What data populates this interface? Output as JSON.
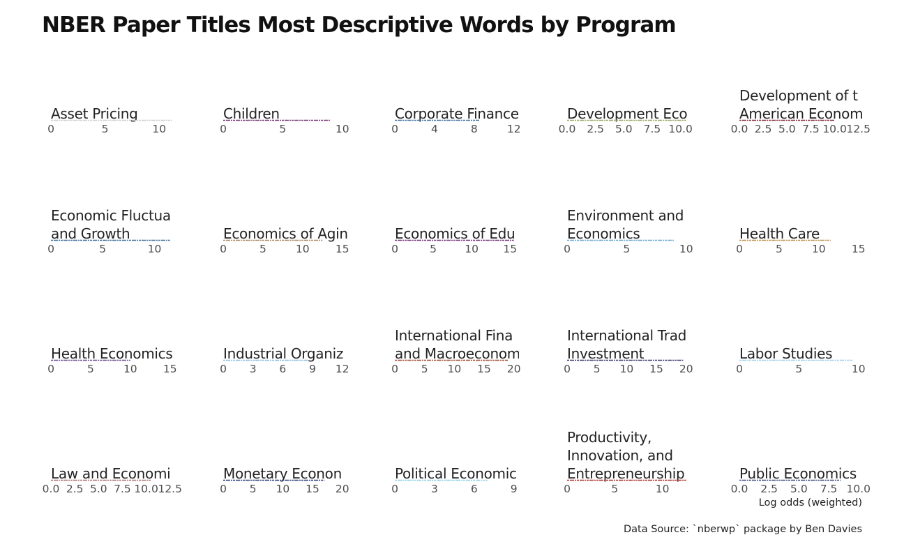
{
  "title": "NBER Paper Titles Most Descriptive Words by Program",
  "xlabel": "Log odds (weighted)",
  "caption": "Data Source: `nberwp` package by Ben Davies",
  "chart_data": {
    "type": "bar",
    "orientation": "horizontal",
    "title": "NBER Paper Titles Most Descriptive Words by Program",
    "xlabel": "Log odds (weighted)",
    "ylabel": "",
    "grid": false,
    "facets": [
      {
        "program": [
          "Asset Pricing"
        ],
        "ticks": [
          "0",
          "5",
          "10"
        ],
        "xlim": [
          0,
          11
        ],
        "bar_color": "#d0d0d0",
        "bar_end": 11.2
      },
      {
        "program": [
          "Children"
        ],
        "ticks": [
          "0",
          "5",
          "10"
        ],
        "xlim": [
          0,
          9
        ],
        "bar_color": "#7a3b78",
        "bar_end": 9.0
      },
      {
        "program": [
          "Corporate Finance"
        ],
        "ticks": [
          "0",
          "4",
          "8",
          "12"
        ],
        "xlim": [
          0,
          8.5
        ],
        "bar_color": "#4a78a6",
        "bar_end": 8.5
      },
      {
        "program": [
          "Development Eco"
        ],
        "ticks": [
          "0.0",
          "2.5",
          "5.0",
          "7.5",
          "10.0"
        ],
        "xlim": [
          0,
          10.5
        ],
        "bar_color": "#9aaa6a",
        "bar_end": 10.5
      },
      {
        "program": [
          "Development of t",
          "American Econom"
        ],
        "ticks": [
          "0.0",
          "2.5",
          "5.0",
          "7.5",
          "10.0",
          "12.5"
        ],
        "xlim": [
          0,
          10
        ],
        "bar_color": "#8a3040",
        "bar_end": 10.0
      },
      {
        "program": [
          "Economic Fluctua",
          "and Growth"
        ],
        "ticks": [
          "0",
          "5",
          "10"
        ],
        "xlim": [
          0,
          11.5
        ],
        "bar_color": "#3b6f9a",
        "bar_end": 11.5
      },
      {
        "program": [
          "Economics of Agin"
        ],
        "ticks": [
          "0",
          "5",
          "10",
          "15"
        ],
        "xlim": [
          0,
          12.5
        ],
        "bar_color": "#a88a60",
        "bar_end": 12.5
      },
      {
        "program": [
          "Economics of Edu"
        ],
        "ticks": [
          "0",
          "5",
          "10",
          "15"
        ],
        "xlim": [
          0,
          15.5
        ],
        "bar_color": "#7a3080",
        "bar_end": 15.5
      },
      {
        "program": [
          "Environment and",
          "Economics"
        ],
        "ticks": [
          "0",
          "5",
          "10"
        ],
        "xlim": [
          0,
          9
        ],
        "bar_color": "#6aa8d0",
        "bar_end": 9.0
      },
      {
        "program": [
          "Health Care"
        ],
        "ticks": [
          "0",
          "5",
          "10",
          "15"
        ],
        "xlim": [
          0,
          11.5
        ],
        "bar_color": "#c09050",
        "bar_end": 11.5
      },
      {
        "program": [
          "Health Economics"
        ],
        "ticks": [
          "0",
          "5",
          "10",
          "15"
        ],
        "xlim": [
          0,
          10
        ],
        "bar_color": "#6a4a90",
        "bar_end": 10.0
      },
      {
        "program": [
          "Industrial Organiz"
        ],
        "ticks": [
          "0",
          "3",
          "6",
          "9",
          "12"
        ],
        "xlim": [
          0,
          8.5
        ],
        "bar_color": "#8ac0e0",
        "bar_end": 8.5
      },
      {
        "program": [
          "International Fina",
          "and Macroeconom"
        ],
        "ticks": [
          "0",
          "5",
          "10",
          "15",
          "20"
        ],
        "xlim": [
          0,
          19
        ],
        "bar_color": "#a05030",
        "bar_end": 19.0
      },
      {
        "program": [
          "International Trad",
          "Investment"
        ],
        "ticks": [
          "0",
          "5",
          "10",
          "15",
          "20"
        ],
        "xlim": [
          0,
          19.5
        ],
        "bar_color": "#3a3a70",
        "bar_end": 19.5
      },
      {
        "program": [
          "Labor Studies"
        ],
        "ticks": [
          "0",
          "5",
          "10"
        ],
        "xlim": [
          0,
          9.5
        ],
        "bar_color": "#a0d0e8",
        "bar_end": 9.5
      },
      {
        "program": [
          "Law and Economi"
        ],
        "ticks": [
          "0.0",
          "2.5",
          "5.0",
          "7.5",
          "10.0",
          "12.5"
        ],
        "xlim": [
          0,
          10.5
        ],
        "bar_color": "#b07070",
        "bar_end": 10.5
      },
      {
        "program": [
          "Monetary Econon"
        ],
        "ticks": [
          "0",
          "5",
          "10",
          "15",
          "20"
        ],
        "xlim": [
          0,
          17
        ],
        "bar_color": "#2a3a7a",
        "bar_end": 17.0
      },
      {
        "program": [
          "Political Economic"
        ],
        "ticks": [
          "0",
          "3",
          "6",
          "9"
        ],
        "xlim": [
          0,
          7
        ],
        "bar_color": "#90d0e0",
        "bar_end": 7.0
      },
      {
        "program": [
          "Productivity,",
          "Innovation, and",
          "Entrepreneurship"
        ],
        "ticks": [
          "0",
          "5",
          "10"
        ],
        "xlim": [
          0,
          12.5
        ],
        "bar_color": "#b03030",
        "bar_end": 12.5
      },
      {
        "program": [
          "Public Economics"
        ],
        "ticks": [
          "0.0",
          "2.5",
          "5.0",
          "7.5",
          "10.0"
        ],
        "xlim": [
          0,
          8.5
        ],
        "bar_color": "#405080",
        "bar_end": 8.5
      }
    ]
  }
}
